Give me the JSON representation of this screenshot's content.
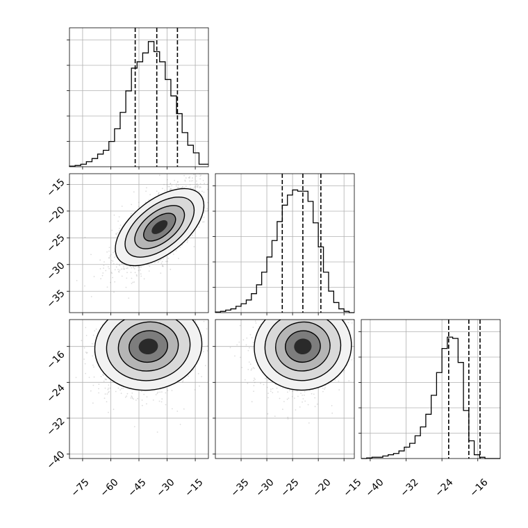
{
  "chart_data": [
    {
      "type": "histogram",
      "panel": "p1-marginal",
      "variable": 1,
      "xlim": [
        -82,
        -8
      ],
      "bin_edges_start": -82,
      "bin_width": 3,
      "counts": [
        0.005,
        0.01,
        0.02,
        0.04,
        0.065,
        0.1,
        0.13,
        0.2,
        0.3,
        0.43,
        0.6,
        0.78,
        0.83,
        0.9,
        0.99,
        0.91,
        0.83,
        0.69,
        0.56,
        0.42,
        0.27,
        0.17,
        0.11,
        0.02
      ],
      "quantiles": [
        -47,
        -35.5,
        -24.5
      ],
      "grid": true
    },
    {
      "type": "histogram",
      "panel": "p2-marginal",
      "variable": 2,
      "xlim": [
        -40,
        -13
      ],
      "bin_edges_start": -40,
      "bin_width": 1,
      "counts": [
        0.005,
        0.01,
        0.02,
        0.03,
        0.05,
        0.07,
        0.1,
        0.15,
        0.22,
        0.32,
        0.44,
        0.57,
        0.72,
        0.85,
        0.93,
        0.97,
        0.96,
        0.96,
        0.88,
        0.71,
        0.52,
        0.32,
        0.17,
        0.08,
        0.03,
        0.01,
        0.0
      ],
      "quantiles": [
        -27,
        -23,
        -19.5
      ],
      "grid": true
    },
    {
      "type": "histogram",
      "panel": "p3-marginal",
      "variable": 3,
      "xlim": [
        -42,
        -11
      ],
      "bin_edges_start": -42,
      "bin_width": 1.2,
      "counts": [
        0.0,
        0.005,
        0.01,
        0.01,
        0.02,
        0.03,
        0.04,
        0.06,
        0.09,
        0.12,
        0.18,
        0.25,
        0.35,
        0.5,
        0.68,
        0.87,
        0.96,
        0.95,
        0.76,
        0.38,
        0.14,
        0.03,
        0.01,
        0.0,
        0.0,
        0.0
      ],
      "quantiles": [
        -22.5,
        -18,
        -15.5
      ],
      "grid": true
    },
    {
      "type": "scatter",
      "panel": "p1-vs-p2",
      "x_variable": 1,
      "y_variable": 2,
      "xlim": [
        -82,
        -8
      ],
      "ylim": [
        -39,
        -13
      ],
      "density_center": [
        -34,
        -23
      ],
      "contour_levels": 4,
      "grid": true
    },
    {
      "type": "scatter",
      "panel": "p1-vs-p3",
      "x_variable": 1,
      "y_variable": 3,
      "xlim": [
        -82,
        -8
      ],
      "ylim": [
        -41,
        -10
      ],
      "density_center": [
        -40,
        -16
      ],
      "contour_levels": 4,
      "grid": true
    },
    {
      "type": "scatter",
      "panel": "p2-vs-p3",
      "x_variable": 2,
      "y_variable": 3,
      "xlim": [
        -40,
        -13
      ],
      "ylim": [
        -41,
        -10
      ],
      "density_center": [
        -23,
        -16
      ],
      "contour_levels": 4,
      "grid": true
    }
  ],
  "axes": {
    "x1_ticks": [
      "−75",
      "−60",
      "−45",
      "−30",
      "−15"
    ],
    "x2_ticks": [
      "−35",
      "−30",
      "−25",
      "−20",
      "−15"
    ],
    "x3_ticks": [
      "−40",
      "−32",
      "−24",
      "−16"
    ],
    "y2_ticks": [
      "−15",
      "−20",
      "−25",
      "−30",
      "−35"
    ],
    "y3_ticks": [
      "−16",
      "−24",
      "−32",
      "−40"
    ]
  },
  "colors": {
    "line": "#000000",
    "grid": "#b0b0b0",
    "points": "#9a9a9a"
  }
}
